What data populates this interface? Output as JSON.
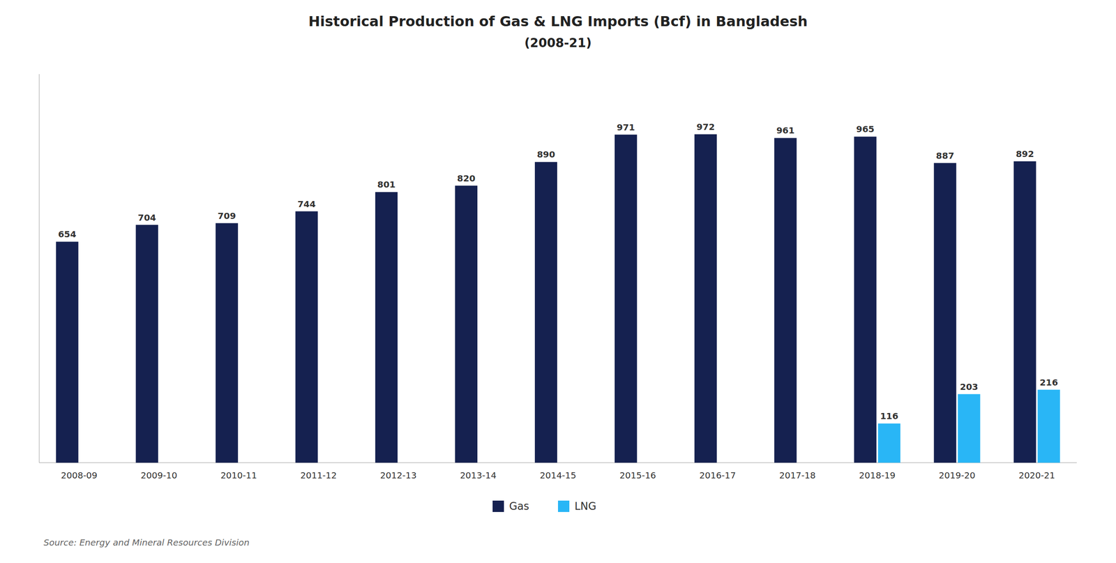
{
  "chart_data": {
    "type": "bar",
    "title": "Historical Production of Gas & LNG Imports (Bcf) in Bangladesh",
    "subtitle": "(2008-21)",
    "categories": [
      "2008-09",
      "2009-10",
      "2010-11",
      "2011-12",
      "2012-13",
      "2013-14",
      "2014-15",
      "2015-16",
      "2016-17",
      "2017-18",
      "2018-19",
      "2019-20",
      "2020-21"
    ],
    "series": [
      {
        "name": "Gas",
        "color": "#152150",
        "values": [
          654,
          704,
          709,
          744,
          801,
          820,
          890,
          971,
          972,
          961,
          965,
          887,
          892
        ]
      },
      {
        "name": "LNG",
        "color": "#29b6f6",
        "values": [
          0,
          0,
          0,
          0,
          0,
          0,
          0,
          0,
          0,
          0,
          116,
          203,
          216
        ],
        "value_labels": [
          null,
          null,
          null,
          null,
          null,
          null,
          null,
          null,
          null,
          null,
          "116",
          "203",
          "216"
        ]
      }
    ],
    "ylim": [
      0,
      1150
    ],
    "grid": false,
    "legend": "bottom",
    "data_labels": true,
    "tick_labels": "x",
    "source": "Source: Energy and Mineral Resources Division"
  }
}
